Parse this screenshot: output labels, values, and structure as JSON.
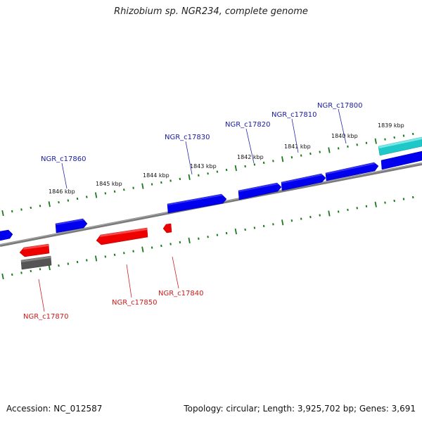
{
  "title": "Rhizobium sp. NGR234, complete genome",
  "accession": "Accession: NC_012587",
  "stats": "Topology: circular; Length: 3,925,702 bp; Genes: 3,691",
  "colors": {
    "forward_gene": "#0000ee",
    "reverse_gene": "#ee0000",
    "pseudo_gene": "#555555",
    "rna_gene": "#1ec8c8",
    "backbone": "#888888",
    "ticks": "#1a7a1a",
    "forward_label": "#1a1aa0",
    "reverse_label": "#cc1a1a"
  },
  "kbp_labels": [
    "1846 kbp",
    "1845 kbp",
    "1844 kbp",
    "1843 kbp",
    "1842 kbp",
    "1841 kbp",
    "1840 kbp",
    "1839 kbp"
  ],
  "forward_genes": [
    "NGR_c17860",
    "NGR_c17830",
    "NGR_c17820",
    "NGR_c17810",
    "NGR_c17800"
  ],
  "reverse_genes": [
    "NGR_c17870",
    "NGR_c17850",
    "NGR_c17840"
  ]
}
